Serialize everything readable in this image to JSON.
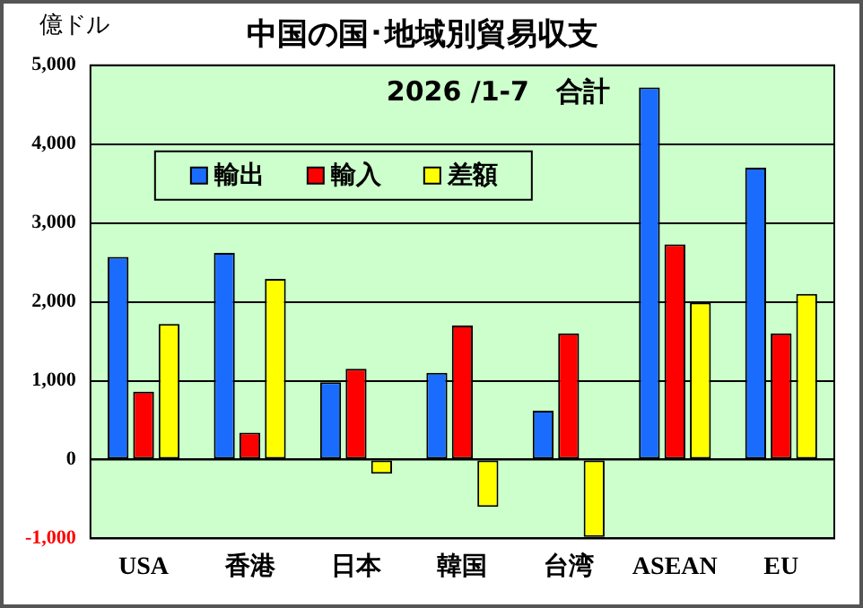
{
  "chart_data": {
    "type": "bar",
    "title": "中国の国･地域別貿易収支",
    "subtitle": "2026 /1-7　合計",
    "ylabel": "億ドル",
    "categories": [
      "USA",
      "香港",
      "日本",
      "韓国",
      "台湾",
      "ASEAN",
      "EU"
    ],
    "series": [
      {
        "name": "輸出",
        "color": "#1a6cff",
        "values": [
          2570,
          2620,
          980,
          1100,
          620,
          4720,
          3700
        ]
      },
      {
        "name": "輸入",
        "color": "#ff0000",
        "values": [
          860,
          340,
          1150,
          1700,
          1600,
          2730,
          1600
        ]
      },
      {
        "name": "差額",
        "color": "#ffff00",
        "values": [
          1720,
          2290,
          -180,
          -600,
          -980,
          1990,
          2100
        ]
      }
    ],
    "ylim": [
      -1000,
      5000
    ],
    "yticks": [
      {
        "value": -1000,
        "label": "-1,000"
      },
      {
        "value": 0,
        "label": "0"
      },
      {
        "value": 1000,
        "label": "1,000"
      },
      {
        "value": 2000,
        "label": "2,000"
      },
      {
        "value": 3000,
        "label": "3,000"
      },
      {
        "value": 4000,
        "label": "4,000"
      },
      {
        "value": 5000,
        "label": "5,000"
      }
    ],
    "grid": "y",
    "legend": "top left"
  }
}
